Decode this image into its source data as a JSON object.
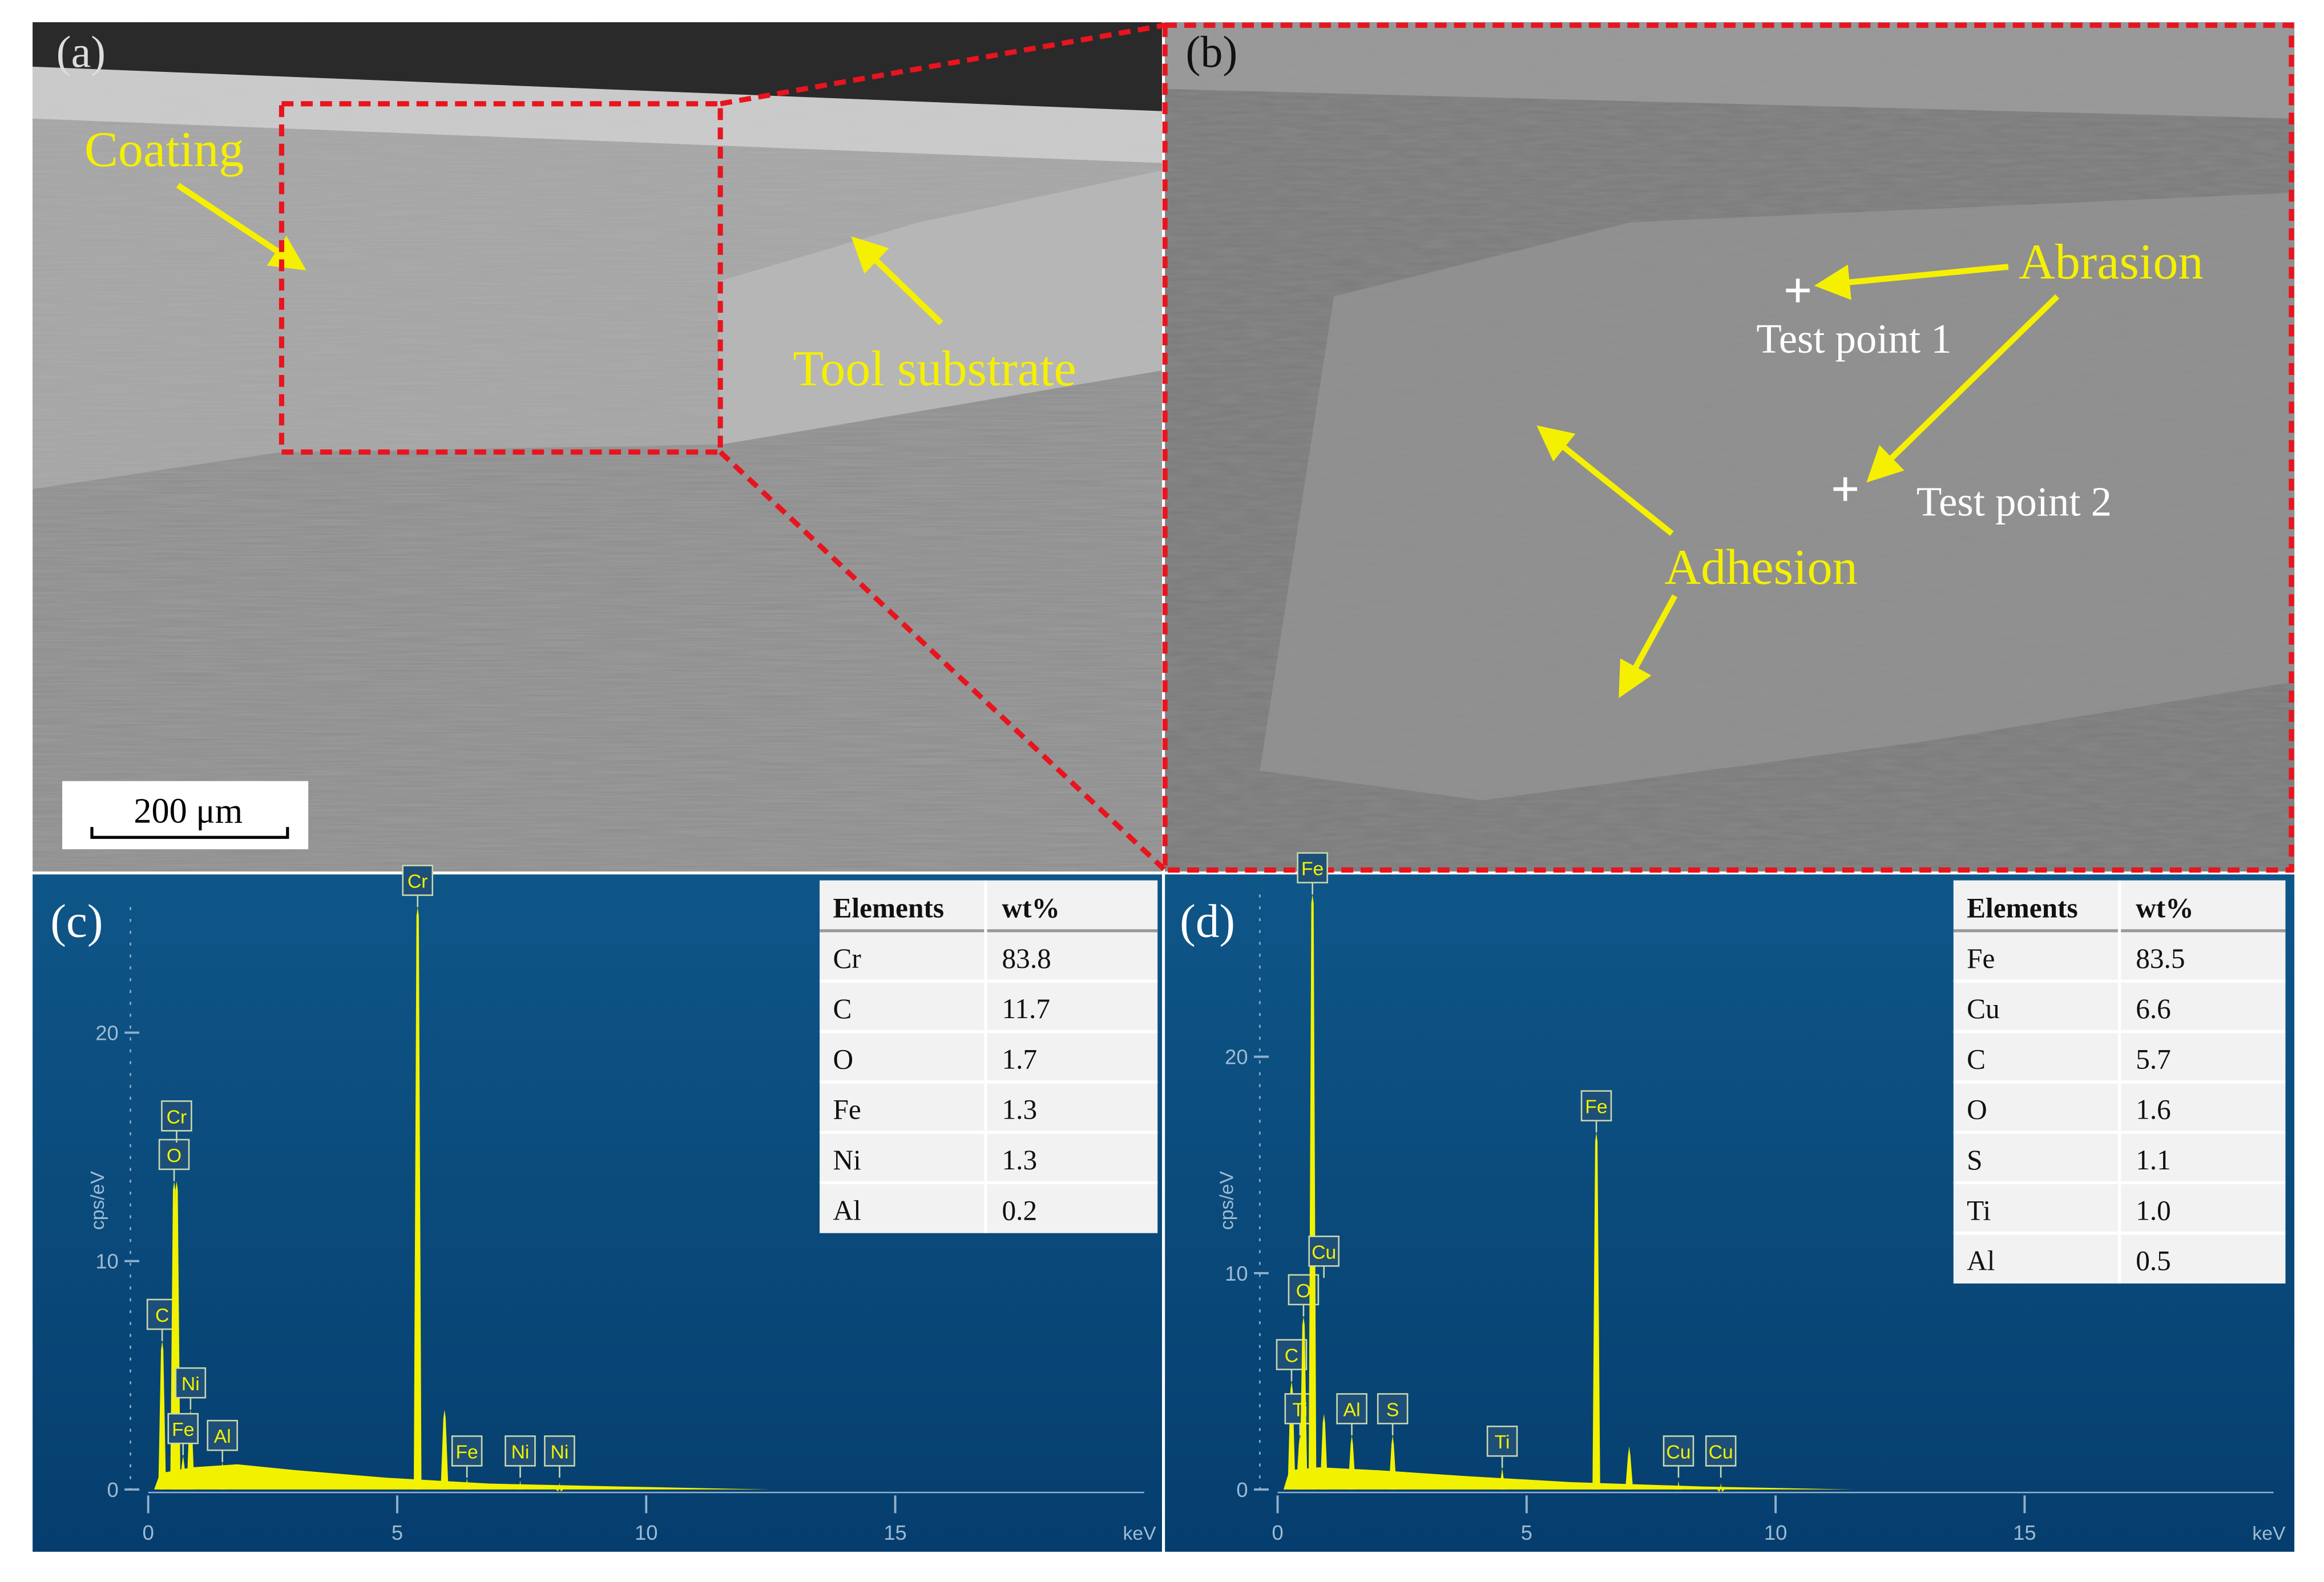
{
  "panels": {
    "a": {
      "label": "(a)",
      "coating": "Coating",
      "substrate": "Tool substrate",
      "scale_bar": "200 μm"
    },
    "b": {
      "label": "(b)",
      "abrasion": "Abrasion",
      "test_point_1": "Test point 1",
      "test_point_2": "Test point 2",
      "adhesion": "Adhesion"
    }
  },
  "chart_data": [
    {
      "type": "spectrum",
      "panel_label": "(c)",
      "y_label": "cps/eV",
      "x_label": "keV",
      "color": "#f2f200",
      "xlim": [
        0,
        20
      ],
      "ylim": [
        0,
        25.5
      ],
      "xticks": [
        0,
        5,
        10,
        15
      ],
      "yticks": [
        0,
        10,
        20
      ],
      "x": [
        0.28,
        0.52,
        0.57,
        0.85,
        0.7,
        1.49,
        5.41,
        5.95,
        6.4,
        7.47,
        8.26
      ],
      "values": [
        6.5,
        13.5,
        13.5,
        3.5,
        1.5,
        1.2,
        25.5,
        3.5,
        0.5,
        0.4,
        0.3
      ],
      "peak_labels": [
        "C",
        "O",
        "Cr",
        "Ni",
        "Fe",
        "Al",
        "Cr",
        null,
        "Fe",
        "Ni",
        "Ni"
      ],
      "table": {
        "columns": [
          "Elements",
          "wt%"
        ],
        "rows": [
          [
            "Cr",
            "83.8"
          ],
          [
            "C",
            "11.7"
          ],
          [
            "O",
            "1.7"
          ],
          [
            "Fe",
            "1.3"
          ],
          [
            "Ni",
            "1.3"
          ],
          [
            "Al",
            "0.2"
          ]
        ]
      }
    },
    {
      "type": "spectrum",
      "panel_label": "(d)",
      "y_label": "cps/eV",
      "x_label": "keV",
      "color": "#f2f200",
      "xlim": [
        0,
        20
      ],
      "ylim": [
        0,
        27.5
      ],
      "xticks": [
        0,
        5,
        10,
        15
      ],
      "yticks": [
        0,
        10,
        20
      ],
      "x": [
        0.28,
        0.45,
        0.52,
        0.7,
        0.93,
        1.49,
        2.31,
        4.51,
        6.4,
        7.06,
        8.05,
        8.9
      ],
      "values": [
        5,
        2.5,
        8,
        27.5,
        3.5,
        2.5,
        2.5,
        1,
        16.5,
        2,
        0.4,
        0.3
      ],
      "peak_labels": [
        "C",
        "Ti",
        "O",
        "Fe",
        "Cu",
        "Al",
        "S",
        "Ti",
        "Fe",
        null,
        "Cu",
        "Cu"
      ],
      "table": {
        "columns": [
          "Elements",
          "wt%"
        ],
        "rows": [
          [
            "Fe",
            "83.5"
          ],
          [
            "Cu",
            "6.6"
          ],
          [
            "C",
            "5.7"
          ],
          [
            "O",
            "1.6"
          ],
          [
            "S",
            "1.1"
          ],
          [
            "Ti",
            "1.0"
          ],
          [
            "Al",
            "0.5"
          ]
        ]
      }
    }
  ]
}
